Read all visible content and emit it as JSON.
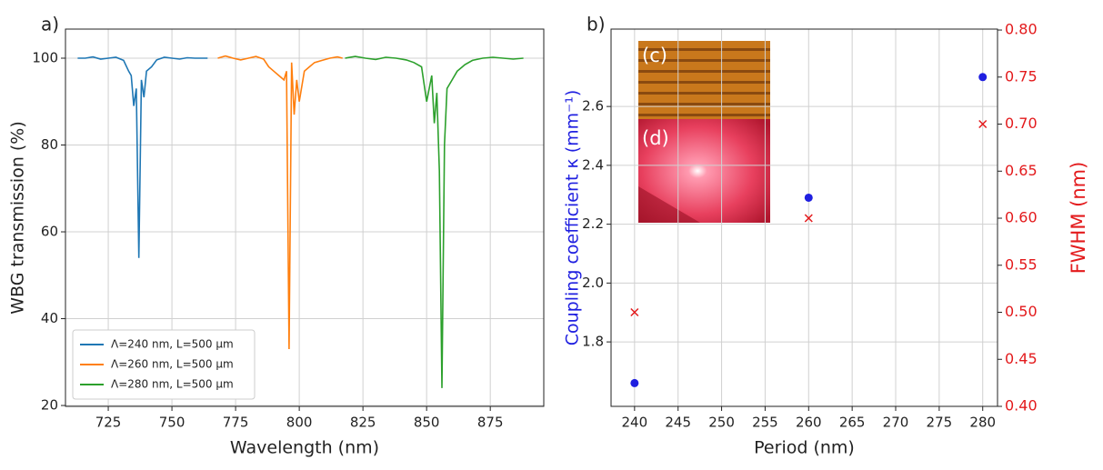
{
  "chart_data": [
    {
      "type": "line",
      "panel_label": "a)",
      "xlabel": "Wavelength (nm)",
      "ylabel": "WBG transmission (%)",
      "xlim": [
        708.2,
        896
      ],
      "ylim": [
        19.8,
        106.7
      ],
      "xticks": [
        725,
        750,
        775,
        800,
        825,
        850,
        875
      ],
      "yticks": [
        20,
        40,
        60,
        80,
        100
      ],
      "grid": true,
      "legend": "lower left",
      "series": [
        {
          "name": "Λ=240 nm, L=500 μm",
          "color": "#1f77b4",
          "x": [
            713,
            716,
            719,
            722,
            725,
            728,
            731,
            733,
            734,
            735,
            736,
            737,
            738,
            739,
            740,
            742,
            744,
            747,
            750,
            753,
            756,
            759,
            762,
            764
          ],
          "values": [
            100,
            100,
            100.3,
            99.8,
            100,
            100.2,
            99.5,
            97,
            96,
            89,
            93,
            54,
            95,
            91,
            97,
            98,
            99.6,
            100.2,
            100,
            99.8,
            100.1,
            100,
            100,
            100
          ]
        },
        {
          "name": "Λ=260 nm, L=500 μm",
          "color": "#ff7f0e",
          "x": [
            768,
            771,
            774,
            777,
            780,
            783,
            786,
            788,
            790,
            792,
            794,
            795,
            796,
            797,
            798,
            799,
            800,
            802,
            804,
            806,
            809,
            812,
            815,
            817
          ],
          "values": [
            100,
            100.5,
            100,
            99.6,
            100,
            100.4,
            99.8,
            98,
            97,
            96,
            95,
            97,
            33,
            99,
            87,
            95,
            90,
            97,
            98,
            99,
            99.5,
            100,
            100.3,
            100
          ]
        },
        {
          "name": "Λ=280 nm, L=500 μm",
          "color": "#2ca02c",
          "x": [
            818,
            822,
            826,
            830,
            834,
            838,
            842,
            845,
            848,
            850,
            852,
            853,
            854,
            855,
            856,
            857,
            858,
            860,
            862,
            865,
            868,
            872,
            876,
            880,
            884,
            888
          ],
          "values": [
            100,
            100.4,
            100,
            99.7,
            100.2,
            100,
            99.6,
            99,
            98,
            90,
            96,
            85,
            92,
            74,
            24,
            80,
            93,
            95,
            97,
            98.5,
            99.5,
            100,
            100.2,
            100,
            99.8,
            100
          ]
        }
      ]
    },
    {
      "type": "scatter",
      "panel_label": "b)",
      "xlabel": "Period (nm)",
      "ylabel": "Coupling coefficient κ (mm⁻¹)",
      "y2label": "FWHM (nm)",
      "xlim": [
        237.3,
        281.7
      ],
      "ylim": [
        1.581,
        2.863
      ],
      "y2lim": [
        0.4,
        0.801
      ],
      "xticks": [
        240,
        245,
        250,
        255,
        260,
        265,
        270,
        275,
        280
      ],
      "yticks": [
        1.8,
        {
          "value": 2,
          "label": "2.0"
        },
        2.2,
        2.4,
        2.6
      ],
      "y2ticks": [
        {
          "value": 0.4,
          "label": "0.40"
        },
        0.45,
        {
          "value": 0.5,
          "label": "0.50"
        },
        0.55,
        {
          "value": 0.6,
          "label": "0.60"
        },
        0.65,
        {
          "value": 0.7,
          "label": "0.70"
        },
        0.75,
        {
          "value": 0.8,
          "label": "0.80"
        }
      ],
      "grid": true,
      "annotations": [
        "(c)",
        "(d)"
      ],
      "x": [
        240,
        260,
        280
      ],
      "series": [
        {
          "color": "#1f1fe0",
          "marker": "o",
          "values": [
            1.66,
            2.29,
            2.7
          ]
        },
        {
          "color": "#e31a1c",
          "marker": "x",
          "axis": "y2",
          "values": [
            0.5,
            0.6,
            0.7
          ]
        }
      ]
    }
  ]
}
